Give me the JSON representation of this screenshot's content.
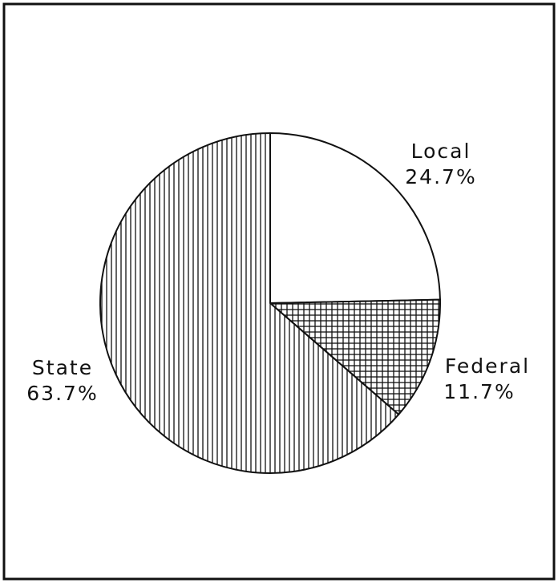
{
  "chart_data": {
    "type": "pie",
    "categories": [
      "Local",
      "Federal",
      "State"
    ],
    "values": [
      24.7,
      11.7,
      63.7
    ],
    "value_labels": [
      "24.7%",
      "11.7%",
      "63.7%"
    ],
    "patterns": [
      "none",
      "crosshatch",
      "vertical"
    ]
  }
}
